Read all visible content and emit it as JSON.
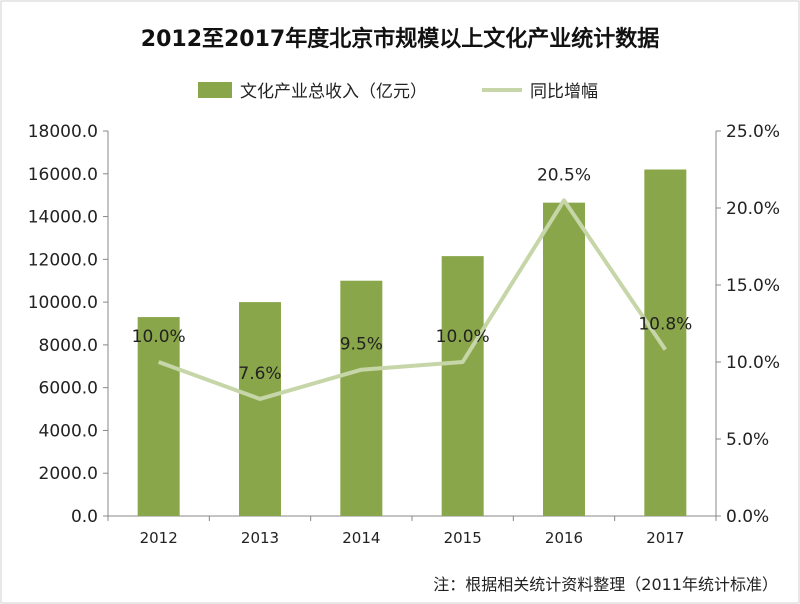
{
  "chart_data": {
    "type": "bar",
    "title": "2012至2017年度北京市规模以上文化产业统计数据",
    "categories": [
      "2012",
      "2013",
      "2014",
      "2015",
      "2016",
      "2017"
    ],
    "series": [
      {
        "name": "文化产业总收入（亿元）",
        "type": "bar",
        "axis": "left",
        "color": "#8aa64a",
        "values": [
          9300,
          10000,
          11000,
          12150,
          14650,
          16200
        ]
      },
      {
        "name": "同比增幅",
        "type": "line",
        "axis": "right",
        "color": "#c6d6a8",
        "values": [
          10.0,
          7.6,
          9.5,
          10.0,
          20.5,
          10.8
        ],
        "labels": [
          "10.0%",
          "7.6%",
          "9.5%",
          "10.0%",
          "20.5%",
          "10.8%"
        ]
      }
    ],
    "y_left": {
      "lim": [
        0,
        18000
      ],
      "ticks": [
        "0.0",
        "2000.0",
        "4000.0",
        "6000.0",
        "8000.0",
        "10000.0",
        "12000.0",
        "14000.0",
        "16000.0",
        "18000.0"
      ]
    },
    "y_right": {
      "lim": [
        0,
        25
      ],
      "ticks": [
        "0.0%",
        "5.0%",
        "10.0%",
        "15.0%",
        "20.0%",
        "25.0%"
      ]
    },
    "grid": false,
    "legend_position": "top-center",
    "note": "注：根据相关统计资料整理（2011年统计标准）"
  }
}
